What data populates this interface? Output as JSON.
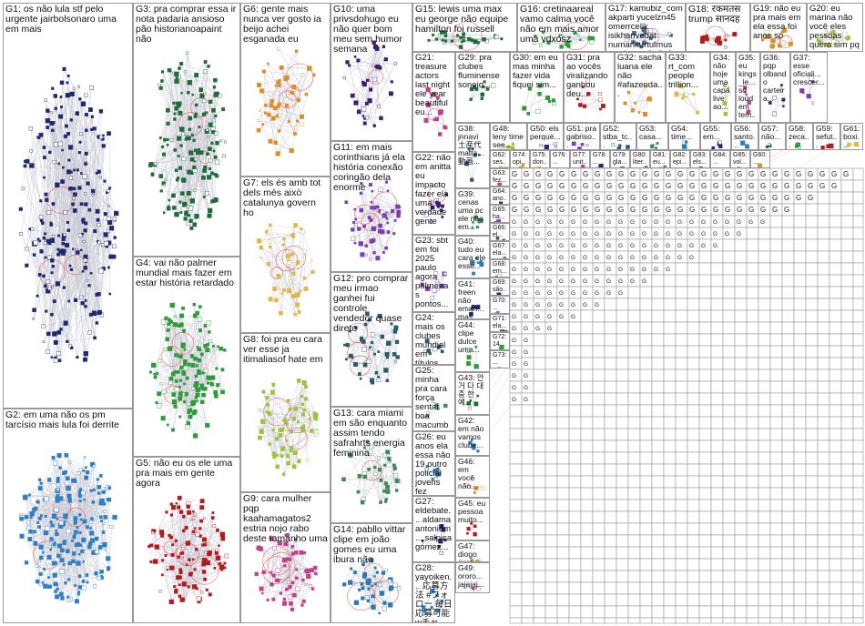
{
  "graph": {
    "groups": [
      {
        "id": "G1",
        "text": "G1: os não lula stf pelo urgente jairbolsonaro uma em mais",
        "color": "#1f2a6e"
      },
      {
        "id": "G2",
        "text": "G2: em uma não os pm tarcísio mais lula foi derrite",
        "color": "#2f7fc4"
      },
      {
        "id": "G3",
        "text": "G3: pra comprar essa ir nota padaria ansioso pão historianoapaint não",
        "color": "#1f6b3a"
      },
      {
        "id": "G4",
        "text": "G4: vai não palmer mundial mais fazer em estar história retardado",
        "color": "#2e9a3a"
      },
      {
        "id": "G5",
        "text": "G5: não eu os ele uma pra mais em gente agora",
        "color": "#b01c1c"
      },
      {
        "id": "G6",
        "text": "G6: gente mais nunca ver gosto ia beijo achei esganada eu",
        "color": "#d9902a"
      },
      {
        "id": "G7",
        "text": "G7: els és amb tot dels més això catalunya govern ho",
        "color": "#e0b84a"
      },
      {
        "id": "G8",
        "text": "G8: foi pra eu cara ver esse ja itimaliasof hate em",
        "color": "#9bc43a"
      },
      {
        "id": "G9",
        "text": "G9: cara mulher pqp kaahamagatos2 estria nojo rabo deste tamanho uma",
        "color": "#c0408a"
      },
      {
        "id": "G10",
        "text": "G10: uma privsdohugo eu não quer bom meu sem humor semana",
        "color": "#3a1f6e"
      },
      {
        "id": "G11",
        "text": "G11: em mais corinthians já ela história conexão coringão dela enorme",
        "color": "#7a3fb0"
      },
      {
        "id": "G12",
        "text": "G12: pro comprar meu irmao ganhei fui controle vendedor quase direto",
        "color": "#2a5a6a"
      },
      {
        "id": "G13",
        "text": "G13: cara miami em são enquanto assim tendo safrahrts energia feminina",
        "color": "#3f8a5a"
      },
      {
        "id": "G14",
        "text": "G14: pabllo vittar clipe em joão gomes eu uma ibura não",
        "color": "#2a7ab0"
      },
      {
        "id": "G15",
        "text": "G15: lewis uma max eu george não equipe hamilton foi russell",
        "color": "#1f6b3a"
      },
      {
        "id": "G16",
        "text": "G16: cretinaareal vamo calma você não em mais amor uma vdxosz",
        "color": "#2e9a3a"
      },
      {
        "id": "G17",
        "text": "G17: kamubiz_com akparti yucelzn45 omerrcelik isikhanvedat numankurtulmus rterdogan ikalin1 muhsindere ek",
        "color": "#4a6a8a"
      },
      {
        "id": "G18",
        "text": "G18: रकमतस trump सानदह",
        "color": "#b01c1c"
      },
      {
        "id": "G19",
        "text": "G19: não eu pra mais em ela essa foi anos só",
        "color": "#d9902a"
      },
      {
        "id": "G20",
        "text": "G20: eu marina não você eles pessoas quero sim pq sena",
        "color": "#9bc43a"
      },
      {
        "id": "G21",
        "text": "G21: treasure actors last night ele year beautiful eu...",
        "color": "#c0408a"
      },
      {
        "id": "G22",
        "text": "G22: não em anitta eu impacto fazer ela uma verdade gente",
        "color": "#3a1f6e"
      },
      {
        "id": "G23",
        "text": "G23: sbt em foi 2025 paulo agora palmeiras pontos...",
        "color": "#7a3fb0"
      },
      {
        "id": "G24",
        "text": "G24: mais os clubes mundial em títulos nba história...",
        "color": "#2a5a6a"
      },
      {
        "id": "G25",
        "text": "G25: minha pra cara força sentar boa macumba puta 4tao...",
        "color": "#3f8a5a"
      },
      {
        "id": "G26",
        "text": "G26: eu anos ela essa não 19 outro policial jovens fez",
        "color": "#2a7ab0"
      },
      {
        "id": "G27",
        "text": "G27: eldebate... aldama antoniom... salpica gómez...",
        "color": "#1f2a6e"
      },
      {
        "id": "G28",
        "text": "G28: yayoiken... 応募方法 #フォロー 毎日応募可能 wチャン...",
        "color": "#2f7fc4"
      },
      {
        "id": "G29",
        "text": "G29: pra clubes fluminense soneio...",
        "color": "#1f6b3a"
      },
      {
        "id": "G30",
        "text": "G30: em eu mas minha fazer vida fiquei sim...",
        "color": "#2e9a3a"
      },
      {
        "id": "G31",
        "text": "G31: pra ao vocês viralizando ganhou deu...",
        "color": "#b01c1c"
      },
      {
        "id": "G32",
        "text": "G32: sacha luana ele não #afazenda...",
        "color": "#d9902a"
      },
      {
        "id": "G33",
        "text": "G33: rt_com people trillion...",
        "color": "#e0b84a"
      },
      {
        "id": "G34",
        "text": "G34: não hoje uma capa live ao...",
        "color": "#9bc43a"
      },
      {
        "id": "G35",
        "text": "G35: eu kings_le... só loud em tem...",
        "color": "#c0408a"
      },
      {
        "id": "G36",
        "text": "G36: pqp olbando carteira...",
        "color": "#3a1f6e"
      },
      {
        "id": "G37",
        "text": "G37: esse oficiali... crescer...",
        "color": "#7a3fb0"
      },
      {
        "id": "G38",
        "text": "G38: jnnavi 土産代 matta... 動画...",
        "color": "#2a5a6a"
      },
      {
        "id": "G39",
        "text": "G39: cenas uma pc ele não em...",
        "color": "#3f8a5a"
      },
      {
        "id": "G40",
        "text": "G40: tudo eu cara ele esse...",
        "color": "#2a7ab0"
      },
      {
        "id": "G41",
        "text": "G41: freen não eman... mas...",
        "color": "#1f2a6e"
      },
      {
        "id": "G42",
        "text": "G42: em não vamos clube...",
        "color": "#2f7fc4"
      },
      {
        "id": "G43",
        "text": "G43: 안 거 다 대충 한 예...",
        "color": "#1f6b3a"
      },
      {
        "id": "G44",
        "text": "G44: clipe dulce uma...",
        "color": "#2e9a3a"
      },
      {
        "id": "G45",
        "text": "G45: eu pessoa muito...",
        "color": "#b01c1c"
      },
      {
        "id": "G46",
        "text": "G46: em você não...",
        "color": "#d9902a"
      },
      {
        "id": "G47",
        "text": "G47: diogo #sstvi uma...",
        "color": "#e0b84a"
      },
      {
        "id": "G48",
        "text": "G48: leny time see...",
        "color": "#9bc43a"
      },
      {
        "id": "G49",
        "text": "G49: ororo... jajajaj...",
        "color": "#c0408a"
      },
      {
        "id": "G50",
        "text": "G50: els perquè...",
        "color": "#3a1f6e"
      },
      {
        "id": "G51",
        "text": "G51: pra gabriso...",
        "color": "#7a3fb0"
      },
      {
        "id": "G52",
        "text": "G52: stba_tc...",
        "color": "#2a5a6a"
      },
      {
        "id": "G53",
        "text": "G53: casa...",
        "color": "#3f8a5a"
      },
      {
        "id": "G54",
        "text": "G54: time...",
        "color": "#2a7ab0"
      },
      {
        "id": "G55",
        "text": "G55: em...",
        "color": "#1f2a6e"
      },
      {
        "id": "G56",
        "text": "G56: santo...",
        "color": "#2f7fc4"
      },
      {
        "id": "G57",
        "text": "G57: não...",
        "color": "#1f6b3a"
      },
      {
        "id": "G58",
        "text": "G58: zeca...",
        "color": "#2e9a3a"
      },
      {
        "id": "G59",
        "text": "G59: sefut...",
        "color": "#b01c1c"
      },
      {
        "id": "G60",
        "text": "G60: ...",
        "color": "#d9902a"
      },
      {
        "id": "G61",
        "text": "G61: boxi...",
        "color": "#e0b84a"
      },
      {
        "id": "G62",
        "text": "G62: ses...",
        "color": "#9bc43a"
      },
      {
        "id": "G63",
        "text": "G63: fez...",
        "color": "#c0408a"
      },
      {
        "id": "G64",
        "text": "G64: ano...",
        "color": "#3a1f6e"
      },
      {
        "id": "G65",
        "text": "G65: ha...",
        "color": "#7a3fb0"
      },
      {
        "id": "G66",
        "text": "G66: el...",
        "color": "#2a5a6a"
      },
      {
        "id": "G67",
        "text": "G67: ela...",
        "color": "#3f8a5a"
      },
      {
        "id": "G68",
        "text": "G68: em...",
        "color": "#2a7ab0"
      },
      {
        "id": "G69",
        "text": "G69: são...",
        "color": "#1f2a6e"
      },
      {
        "id": "G70",
        "text": "G70: ...",
        "color": "#2f7fc4"
      },
      {
        "id": "G71",
        "text": "G71: ela...",
        "color": "#1f6b3a"
      },
      {
        "id": "G72",
        "text": "G72: 14...",
        "color": "#2e9a3a"
      },
      {
        "id": "G73",
        "text": "G73: ...",
        "color": "#b01c1c"
      },
      {
        "id": "G74",
        "text": "G74: opi...",
        "color": "#d9902a"
      },
      {
        "id": "G75",
        "text": "G75: don...",
        "color": "#e0b84a"
      },
      {
        "id": "G76",
        "text": "G76: ...",
        "color": "#9bc43a"
      },
      {
        "id": "G77",
        "text": "G77: unit...",
        "color": "#c0408a"
      },
      {
        "id": "G78",
        "text": "G78: ...",
        "color": "#3a1f6e"
      },
      {
        "id": "G79",
        "text": "G79: gla...",
        "color": "#7a3fb0"
      },
      {
        "id": "G80",
        "text": "G80: liter...",
        "color": "#2a5a6a"
      },
      {
        "id": "G81",
        "text": "G81: eu...",
        "color": "#3f8a5a"
      },
      {
        "id": "G82",
        "text": "G82: epi...",
        "color": "#2a7ab0"
      },
      {
        "id": "G83",
        "text": "G83: els...",
        "color": "#1f2a6e"
      },
      {
        "id": "G84",
        "text": "G84: ...",
        "color": "#2f7fc4"
      },
      {
        "id": "G85",
        "text": "G85: vol...",
        "color": "#1f6b3a"
      }
    ],
    "small_labels": [
      "G...",
      "G..",
      "G",
      "G1...",
      "G...",
      "G.",
      "Go...",
      "ve...",
      "ale...",
      "se...",
      "os...",
      "iss...",
      "ma...",
      "la...",
      "bo...",
      "ve...",
      "elc...",
      "arti...",
      "10i...",
      "nã...",
      "the...",
      "uma...",
      "ela...",
      "the...",
      "joã...",
      "ma...",
      "live...",
      "us..."
    ]
  }
}
